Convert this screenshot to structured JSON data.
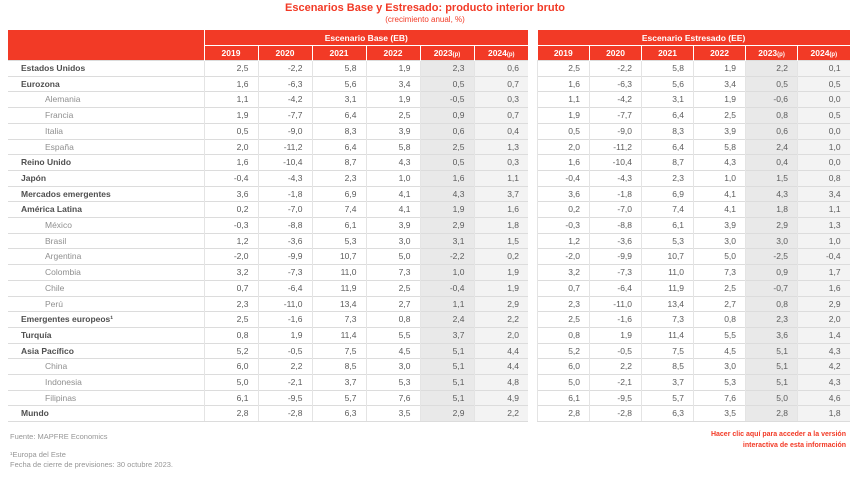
{
  "title": "Escenarios Base y Estresado: producto interior bruto",
  "subtitle": "(crecimiento anual, %)",
  "colors": {
    "accent_red": "#f23a26",
    "forecast_col_2023_bg": "#e9e9e9",
    "forecast_col_2024_bg": "#f3f3f3",
    "row_line": "#dcdcdc"
  },
  "chart_data": {
    "type": "table",
    "title": "Escenarios Base y Estresado: producto interior bruto",
    "subtitle": "(crecimiento anual, %)",
    "group_headers": [
      "Escenario Base (EB)",
      "Escenario Estresado (EE)"
    ],
    "years": [
      {
        "y": "2019"
      },
      {
        "y": "2020"
      },
      {
        "y": "2021"
      },
      {
        "y": "2022"
      },
      {
        "y": "2023",
        "p": "(p)"
      },
      {
        "y": "2024",
        "p": "(p)"
      }
    ],
    "rows": [
      {
        "label": "Estados Unidos",
        "indent": false,
        "eb": [
          "2,5",
          "-2,2",
          "5,8",
          "1,9",
          "2,3",
          "0,6"
        ],
        "ee": [
          "2,5",
          "-2,2",
          "5,8",
          "1,9",
          "2,2",
          "0,1"
        ]
      },
      {
        "label": "Eurozona",
        "indent": false,
        "eb": [
          "1,6",
          "-6,3",
          "5,6",
          "3,4",
          "0,5",
          "0,7"
        ],
        "ee": [
          "1,6",
          "-6,3",
          "5,6",
          "3,4",
          "0,5",
          "0,5"
        ]
      },
      {
        "label": "Alemania",
        "indent": true,
        "eb": [
          "1,1",
          "-4,2",
          "3,1",
          "1,9",
          "-0,5",
          "0,3"
        ],
        "ee": [
          "1,1",
          "-4,2",
          "3,1",
          "1,9",
          "-0,6",
          "0,0"
        ]
      },
      {
        "label": "Francia",
        "indent": true,
        "eb": [
          "1,9",
          "-7,7",
          "6,4",
          "2,5",
          "0,9",
          "0,7"
        ],
        "ee": [
          "1,9",
          "-7,7",
          "6,4",
          "2,5",
          "0,8",
          "0,5"
        ]
      },
      {
        "label": "Italia",
        "indent": true,
        "eb": [
          "0,5",
          "-9,0",
          "8,3",
          "3,9",
          "0,6",
          "0,4"
        ],
        "ee": [
          "0,5",
          "-9,0",
          "8,3",
          "3,9",
          "0,6",
          "0,0"
        ]
      },
      {
        "label": "España",
        "indent": true,
        "eb": [
          "2,0",
          "-11,2",
          "6,4",
          "5,8",
          "2,5",
          "1,3"
        ],
        "ee": [
          "2,0",
          "-11,2",
          "6,4",
          "5,8",
          "2,4",
          "1,0"
        ]
      },
      {
        "label": "Reino Unido",
        "indent": false,
        "eb": [
          "1,6",
          "-10,4",
          "8,7",
          "4,3",
          "0,5",
          "0,3"
        ],
        "ee": [
          "1,6",
          "-10,4",
          "8,7",
          "4,3",
          "0,4",
          "0,0"
        ]
      },
      {
        "label": "Japón",
        "indent": false,
        "eb": [
          "-0,4",
          "-4,3",
          "2,3",
          "1,0",
          "1,6",
          "1,1"
        ],
        "ee": [
          "-0,4",
          "-4,3",
          "2,3",
          "1,0",
          "1,5",
          "0,8"
        ]
      },
      {
        "label": "Mercados emergentes",
        "indent": false,
        "eb": [
          "3,6",
          "-1,8",
          "6,9",
          "4,1",
          "4,3",
          "3,7"
        ],
        "ee": [
          "3,6",
          "-1,8",
          "6,9",
          "4,1",
          "4,3",
          "3,4"
        ]
      },
      {
        "label": "América Latina",
        "indent": false,
        "eb": [
          "0,2",
          "-7,0",
          "7,4",
          "4,1",
          "1,9",
          "1,6"
        ],
        "ee": [
          "0,2",
          "-7,0",
          "7,4",
          "4,1",
          "1,8",
          "1,1"
        ]
      },
      {
        "label": "México",
        "indent": true,
        "eb": [
          "-0,3",
          "-8,8",
          "6,1",
          "3,9",
          "2,9",
          "1,8"
        ],
        "ee": [
          "-0,3",
          "-8,8",
          "6,1",
          "3,9",
          "2,9",
          "1,3"
        ]
      },
      {
        "label": "Brasil",
        "indent": true,
        "eb": [
          "1,2",
          "-3,6",
          "5,3",
          "3,0",
          "3,1",
          "1,5"
        ],
        "ee": [
          "1,2",
          "-3,6",
          "5,3",
          "3,0",
          "3,0",
          "1,0"
        ]
      },
      {
        "label": "Argentina",
        "indent": true,
        "eb": [
          "-2,0",
          "-9,9",
          "10,7",
          "5,0",
          "-2,2",
          "0,2"
        ],
        "ee": [
          "-2,0",
          "-9,9",
          "10,7",
          "5,0",
          "-2,5",
          "-0,4"
        ]
      },
      {
        "label": "Colombia",
        "indent": true,
        "eb": [
          "3,2",
          "-7,3",
          "11,0",
          "7,3",
          "1,0",
          "1,9"
        ],
        "ee": [
          "3,2",
          "-7,3",
          "11,0",
          "7,3",
          "0,9",
          "1,7"
        ]
      },
      {
        "label": "Chile",
        "indent": true,
        "eb": [
          "0,7",
          "-6,4",
          "11,9",
          "2,5",
          "-0,4",
          "1,9"
        ],
        "ee": [
          "0,7",
          "-6,4",
          "11,9",
          "2,5",
          "-0,7",
          "1,6"
        ]
      },
      {
        "label": "Perú",
        "indent": true,
        "eb": [
          "2,3",
          "-11,0",
          "13,4",
          "2,7",
          "1,1",
          "2,9"
        ],
        "ee": [
          "2,3",
          "-11,0",
          "13,4",
          "2,7",
          "0,8",
          "2,9"
        ]
      },
      {
        "label": "Emergentes europeos¹",
        "indent": false,
        "eb": [
          "2,5",
          "-1,6",
          "7,3",
          "0,8",
          "2,4",
          "2,2"
        ],
        "ee": [
          "2,5",
          "-1,6",
          "7,3",
          "0,8",
          "2,3",
          "2,0"
        ]
      },
      {
        "label": "Turquía",
        "indent": false,
        "eb": [
          "0,8",
          "1,9",
          "11,4",
          "5,5",
          "3,7",
          "2,0"
        ],
        "ee": [
          "0,8",
          "1,9",
          "11,4",
          "5,5",
          "3,6",
          "1,4"
        ]
      },
      {
        "label": "Asia Pacífico",
        "indent": false,
        "eb": [
          "5,2",
          "-0,5",
          "7,5",
          "4,5",
          "5,1",
          "4,4"
        ],
        "ee": [
          "5,2",
          "-0,5",
          "7,5",
          "4,5",
          "5,1",
          "4,3"
        ]
      },
      {
        "label": "China",
        "indent": true,
        "eb": [
          "6,0",
          "2,2",
          "8,5",
          "3,0",
          "5,1",
          "4,4"
        ],
        "ee": [
          "6,0",
          "2,2",
          "8,5",
          "3,0",
          "5,1",
          "4,2"
        ]
      },
      {
        "label": "Indonesia",
        "indent": true,
        "eb": [
          "5,0",
          "-2,1",
          "3,7",
          "5,3",
          "5,1",
          "4,8"
        ],
        "ee": [
          "5,0",
          "-2,1",
          "3,7",
          "5,3",
          "5,1",
          "4,3"
        ]
      },
      {
        "label": "Filipinas",
        "indent": true,
        "eb": [
          "6,1",
          "-9,5",
          "5,7",
          "7,6",
          "5,1",
          "4,9"
        ],
        "ee": [
          "6,1",
          "-9,5",
          "5,7",
          "7,6",
          "5,0",
          "4,6"
        ]
      },
      {
        "label": "Mundo",
        "indent": false,
        "eb": [
          "2,8",
          "-2,8",
          "6,3",
          "3,5",
          "2,9",
          "2,2"
        ],
        "ee": [
          "2,8",
          "-2,8",
          "6,3",
          "3,5",
          "2,8",
          "1,8"
        ]
      }
    ]
  },
  "footer": {
    "source": "Fuente: MAPFRE Economics",
    "footnote1": "¹Europa del Este",
    "footnote2": "Fecha de cierre de previsiones: 30 octubre 2023."
  },
  "link": {
    "line1": "Hacer clic aquí para acceder a la versión",
    "line2": "interactiva de esta información"
  }
}
